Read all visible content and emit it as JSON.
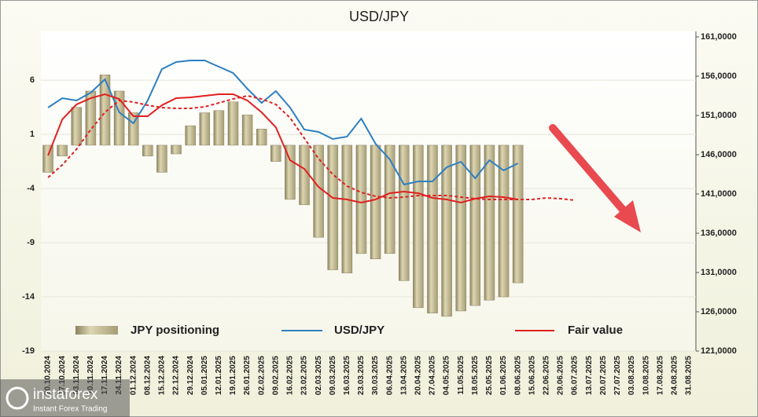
{
  "chart_data": {
    "type": "combo",
    "title": "USD/JPY",
    "categories": [
      "20.10.2024",
      "27.10.2024",
      "03.11.2024",
      "10.11.2024",
      "17.11.2024",
      "24.11.2024",
      "01.12.2024",
      "08.12.2024",
      "15.12.2024",
      "22.12.2024",
      "29.12.2024",
      "05.01.2025",
      "12.01.2025",
      "19.01.2025",
      "26.01.2025",
      "02.02.2025",
      "09.02.2025",
      "16.02.2025",
      "23.02.2025",
      "02.03.2025",
      "09.03.2025",
      "16.03.2025",
      "23.03.2025",
      "30.03.2025",
      "06.04.2025",
      "13.04.2025",
      "20.04.2025",
      "27.04.2025",
      "04.05.2025",
      "11.05.2025",
      "18.05.2025",
      "25.05.2025",
      "01.06.2025",
      "08.06.2025",
      "15.06.2025",
      "22.06.2025",
      "29.06.2025",
      "06.07.2025",
      "13.07.2025",
      "20.07.2025",
      "27.07.2025",
      "03.08.2025",
      "10.08.2025",
      "17.08.2025",
      "24.08.2025",
      "31.08.2025"
    ],
    "series": [
      {
        "name": "JPY positioning",
        "type": "bar",
        "axis": "y",
        "color": "#c9c29c",
        "values": [
          -2.5,
          -1.0,
          3.5,
          5.0,
          6.5,
          5.0,
          3.0,
          -1.0,
          -2.5,
          -0.8,
          1.8,
          3.0,
          3.2,
          4.0,
          2.8,
          1.5,
          -1.5,
          -5.0,
          -5.5,
          -8.5,
          -11.5,
          -11.8,
          -10.0,
          -10.5,
          -10.0,
          -12.5,
          -15.0,
          -15.5,
          -15.8,
          -15.3,
          -14.8,
          -14.3,
          -14.0,
          -12.7,
          null,
          null,
          null,
          null,
          null,
          null,
          null,
          null,
          null,
          null,
          null,
          null
        ]
      },
      {
        "name": "USD/JPY",
        "type": "line",
        "axis": "y2",
        "color": "#2e7fc0",
        "values": [
          152.0,
          153.2,
          152.9,
          153.9,
          155.6,
          151.4,
          150.0,
          152.9,
          156.9,
          157.8,
          158.0,
          158.0,
          157.2,
          156.4,
          154.4,
          152.6,
          154.1,
          152.0,
          149.2,
          148.9,
          148.0,
          148.3,
          150.6,
          147.4,
          145.4,
          142.2,
          142.6,
          142.6,
          144.4,
          145.1,
          143.0,
          145.3,
          144.0,
          144.9,
          null,
          null,
          null,
          null,
          null,
          null,
          null,
          null,
          null,
          null,
          null,
          null
        ]
      },
      {
        "name": "Fair value",
        "type": "line",
        "axis": "y2",
        "color": "#e02020",
        "values": [
          145.9,
          150.5,
          152.4,
          153.2,
          153.7,
          153.1,
          150.9,
          150.9,
          152.3,
          153.2,
          153.3,
          153.5,
          153.7,
          153.7,
          152.9,
          151.4,
          149.5,
          145.3,
          144.2,
          141.9,
          140.5,
          140.3,
          139.9,
          140.3,
          141.1,
          141.3,
          141.1,
          140.5,
          140.3,
          139.9,
          140.4,
          140.7,
          140.6,
          140.3,
          null,
          null,
          null,
          null,
          null,
          null,
          null,
          null,
          null,
          null,
          null,
          null
        ]
      },
      {
        "type": "line",
        "axis": "y2",
        "color": "#e02020",
        "dashed": true,
        "values": [
          143.1,
          144.7,
          146.7,
          149.2,
          151.4,
          152.9,
          152.7,
          152.3,
          152.0,
          151.9,
          151.9,
          152.1,
          152.6,
          153.1,
          153.5,
          153.1,
          152.4,
          150.7,
          148.1,
          145.5,
          143.5,
          142.0,
          141.2,
          140.7,
          140.5,
          140.6,
          140.8,
          140.8,
          140.8,
          140.6,
          140.4,
          140.3,
          140.3,
          140.3,
          140.3,
          140.5,
          140.4,
          140.2,
          null,
          null,
          null,
          null,
          null,
          null,
          null,
          null
        ]
      }
    ],
    "ylim": [
      -19,
      10
    ],
    "yticks": [
      6,
      1,
      -4,
      -9,
      -14,
      -19
    ],
    "y2lim": [
      121,
      161
    ],
    "y2ticks": [
      {
        "value": 161,
        "label": "161,0000"
      },
      {
        "value": 156,
        "label": "156,0000"
      },
      {
        "value": 151,
        "label": "151,0000"
      },
      {
        "value": 146,
        "label": "146,0000"
      },
      {
        "value": 141,
        "label": "141,0000"
      },
      {
        "value": 136,
        "label": "136,0000"
      },
      {
        "value": 131,
        "label": "131,0000"
      },
      {
        "value": 126,
        "label": "126,0000"
      },
      {
        "value": 121,
        "label": "121,0000"
      }
    ],
    "grid": true
  },
  "watermark": {
    "brand": "instaforex",
    "tagline": "Instant Forex Trading"
  }
}
